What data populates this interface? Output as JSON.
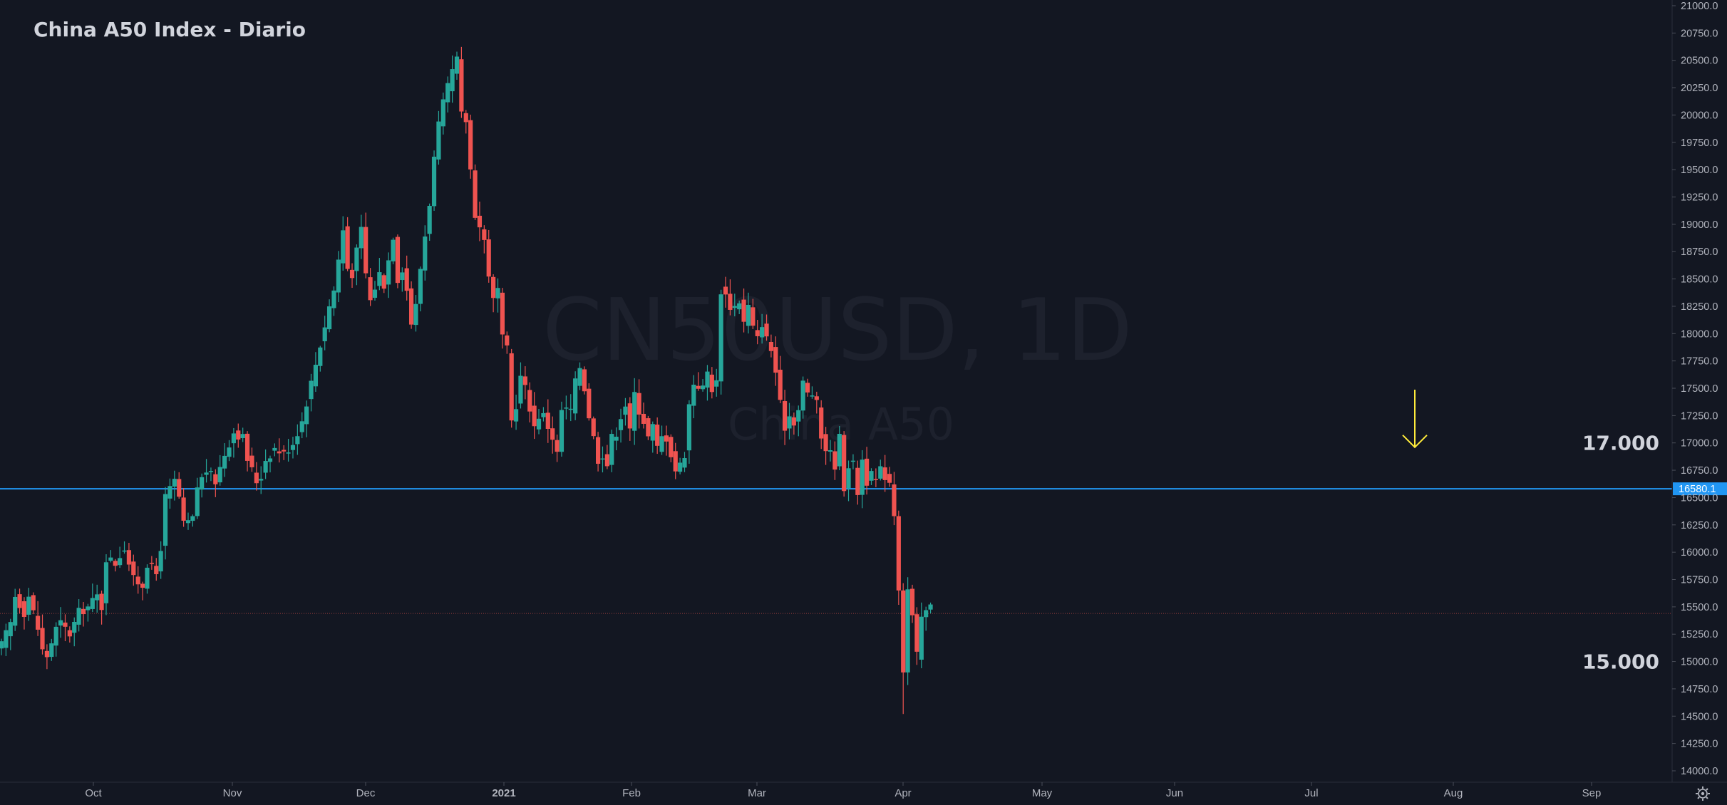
{
  "chart_data": {
    "type": "candlestick",
    "title": "China A50 Index - Diario",
    "watermark": {
      "symbol": "CN50USD, 1D",
      "name": "China A50"
    },
    "ylim": [
      14000,
      21000
    ],
    "y_ticks": [
      "21000.0",
      "20750.0",
      "20500.0",
      "20250.0",
      "20000.0",
      "19750.0",
      "19500.0",
      "19250.0",
      "19000.0",
      "18750.0",
      "18500.0",
      "18250.0",
      "18000.0",
      "17750.0",
      "17500.0",
      "17250.0",
      "17000.0",
      "16750.0",
      "16500.0",
      "16250.0",
      "16000.0",
      "15750.0",
      "15500.0",
      "15250.0",
      "15000.0",
      "14750.0",
      "14500.0",
      "14250.0",
      "14000.0"
    ],
    "x_ticks": [
      {
        "label": "Oct",
        "bold": false
      },
      {
        "label": "Nov",
        "bold": false
      },
      {
        "label": "Dec",
        "bold": false
      },
      {
        "label": "2021",
        "bold": true
      },
      {
        "label": "Feb",
        "bold": false
      },
      {
        "label": "Mar",
        "bold": false
      },
      {
        "label": "Apr",
        "bold": false
      },
      {
        "label": "May",
        "bold": false
      },
      {
        "label": "Jun",
        "bold": false
      },
      {
        "label": "Jul",
        "bold": false
      },
      {
        "label": "Aug",
        "bold": false
      },
      {
        "label": "Sep",
        "bold": false
      }
    ],
    "horizontal_line": {
      "value": 16580.1,
      "label": "16580.1",
      "color": "#2196f3"
    },
    "last_price_line": {
      "value": 15440,
      "color": "#ef5350"
    },
    "annotations": [
      {
        "text": "17.000",
        "value": 17000
      },
      {
        "text": "15.000",
        "value": 15000
      }
    ],
    "arrow": {
      "color": "#ffeb3b",
      "points_to": 16960
    },
    "colors": {
      "background": "#131722",
      "up": "#26a69a",
      "down": "#ef5350",
      "axis_text": "#b2b5be",
      "title": "#d1d4dc"
    },
    "settings_icon": "gear-icon",
    "series": [
      {
        "name": "CN50USD",
        "segments": [
          [
            0,
            15150
          ],
          [
            2,
            15350
          ],
          [
            3,
            15600
          ],
          [
            5,
            15450
          ],
          [
            6,
            15600
          ],
          [
            8,
            15300
          ],
          [
            9,
            15100
          ],
          [
            10,
            15050
          ],
          [
            12,
            15300
          ],
          [
            13,
            15350
          ],
          [
            15,
            15250
          ],
          [
            17,
            15450
          ],
          [
            19,
            15500
          ],
          [
            21,
            15600
          ],
          [
            22,
            15500
          ],
          [
            23,
            15950
          ],
          [
            25,
            15900
          ],
          [
            27,
            16050
          ],
          [
            28,
            15900
          ],
          [
            29,
            15750
          ],
          [
            31,
            15700
          ],
          [
            32,
            15900
          ],
          [
            34,
            15800
          ],
          [
            35,
            16050
          ],
          [
            36,
            16500
          ],
          [
            38,
            16650
          ],
          [
            39,
            16500
          ],
          [
            40,
            16250
          ],
          [
            42,
            16300
          ],
          [
            43,
            16600
          ],
          [
            45,
            16750
          ],
          [
            47,
            16650
          ],
          [
            49,
            16900
          ],
          [
            51,
            17100
          ],
          [
            53,
            17050
          ],
          [
            54,
            16850
          ],
          [
            56,
            16650
          ],
          [
            57,
            16700
          ],
          [
            58,
            16850
          ],
          [
            60,
            16950
          ],
          [
            62,
            16900
          ],
          [
            64,
            17000
          ],
          [
            66,
            17200
          ],
          [
            68,
            17550
          ],
          [
            70,
            17900
          ],
          [
            72,
            18250
          ],
          [
            73,
            18400
          ],
          [
            75,
            18950
          ],
          [
            76,
            18600
          ],
          [
            77,
            18550
          ],
          [
            79,
            18950
          ],
          [
            80,
            18550
          ],
          [
            81,
            18300
          ],
          [
            83,
            18550
          ],
          [
            84,
            18450
          ],
          [
            86,
            18900
          ],
          [
            87,
            18500
          ],
          [
            88,
            18600
          ],
          [
            89,
            18400
          ],
          [
            90,
            18100
          ],
          [
            91,
            18250
          ],
          [
            92,
            18600
          ],
          [
            93,
            18900
          ],
          [
            94,
            19200
          ],
          [
            95,
            19600
          ],
          [
            96,
            19900
          ],
          [
            97,
            20100
          ],
          [
            98,
            20250
          ],
          [
            99,
            20400
          ],
          [
            100,
            20500
          ],
          [
            101,
            20000
          ],
          [
            102,
            19950
          ],
          [
            103,
            19500
          ],
          [
            104,
            19100
          ],
          [
            106,
            18850
          ],
          [
            107,
            18550
          ],
          [
            108,
            18300
          ],
          [
            109,
            18400
          ],
          [
            110,
            17950
          ],
          [
            111,
            17850
          ],
          [
            112,
            17200
          ],
          [
            113,
            17350
          ],
          [
            114,
            17600
          ],
          [
            115,
            17500
          ],
          [
            117,
            17150
          ],
          [
            118,
            17250
          ],
          [
            119,
            17250
          ],
          [
            121,
            17050
          ],
          [
            122,
            16900
          ],
          [
            123,
            17300
          ],
          [
            125,
            17300
          ],
          [
            126,
            17550
          ],
          [
            127,
            17700
          ],
          [
            128,
            17500
          ],
          [
            129,
            17250
          ],
          [
            130,
            17050
          ],
          [
            131,
            16850
          ],
          [
            132,
            16900
          ],
          [
            133,
            16800
          ],
          [
            134,
            17050
          ],
          [
            135,
            17100
          ],
          [
            136,
            17250
          ],
          [
            137,
            17350
          ],
          [
            138,
            17100
          ],
          [
            139,
            17450
          ],
          [
            140,
            17300
          ],
          [
            141,
            17200
          ],
          [
            142,
            17050
          ],
          [
            143,
            17150
          ],
          [
            144,
            16950
          ],
          [
            145,
            17050
          ],
          [
            146,
            17050
          ],
          [
            147,
            16900
          ],
          [
            148,
            16750
          ],
          [
            149,
            16800
          ],
          [
            150,
            16900
          ],
          [
            151,
            17350
          ],
          [
            152,
            17550
          ],
          [
            154,
            17500
          ],
          [
            155,
            17650
          ],
          [
            156,
            17500
          ],
          [
            157,
            17550
          ],
          [
            158,
            18400
          ],
          [
            159,
            18350
          ],
          [
            160,
            18250
          ],
          [
            161,
            18250
          ],
          [
            162,
            18300
          ],
          [
            163,
            18100
          ],
          [
            164,
            18250
          ],
          [
            165,
            18050
          ],
          [
            166,
            17950
          ],
          [
            167,
            18100
          ],
          [
            168,
            17950
          ],
          [
            169,
            17850
          ],
          [
            170,
            17650
          ],
          [
            171,
            17350
          ],
          [
            172,
            17150
          ],
          [
            173,
            17250
          ],
          [
            174,
            17200
          ],
          [
            175,
            17300
          ],
          [
            176,
            17550
          ],
          [
            177,
            17450
          ],
          [
            178,
            17450
          ],
          [
            179,
            17350
          ],
          [
            180,
            17050
          ],
          [
            181,
            16950
          ],
          [
            182,
            16900
          ],
          [
            183,
            16800
          ],
          [
            184,
            17050
          ],
          [
            185,
            16600
          ],
          [
            186,
            16800
          ],
          [
            187,
            16800
          ],
          [
            188,
            16550
          ],
          [
            189,
            16850
          ],
          [
            190,
            16650
          ],
          [
            191,
            16700
          ],
          [
            192,
            16650
          ],
          [
            193,
            16750
          ],
          [
            194,
            16700
          ],
          [
            195,
            16650
          ],
          [
            196,
            16100
          ],
          [
            197,
            15650
          ],
          [
            198,
            14950
          ],
          [
            199,
            15650
          ],
          [
            200,
            15400
          ],
          [
            201,
            15050
          ],
          [
            202,
            15400
          ],
          [
            203,
            15450
          ],
          [
            204,
            15550
          ]
        ]
      }
    ]
  }
}
